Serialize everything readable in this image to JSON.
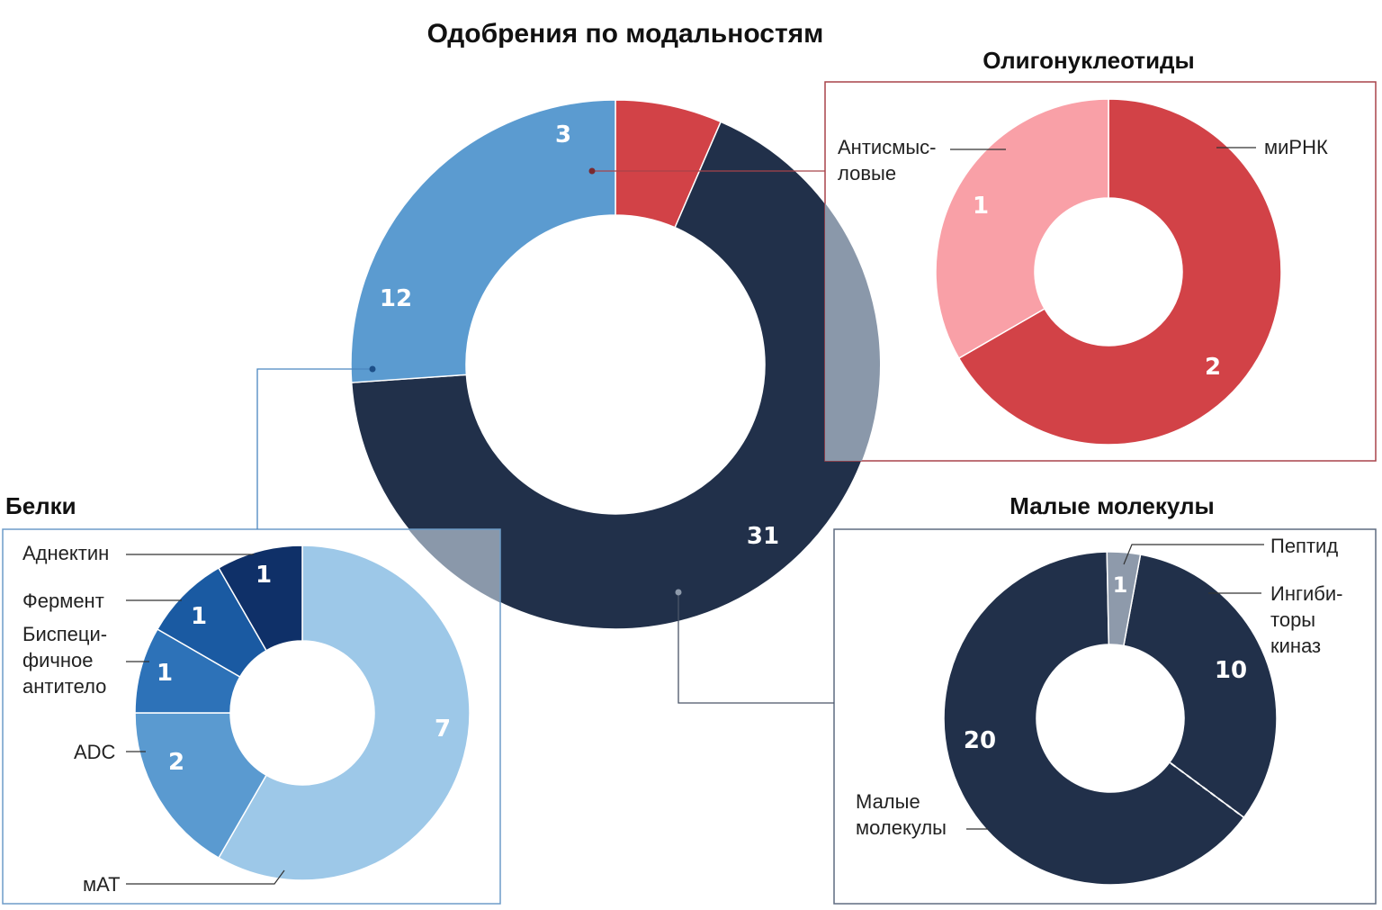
{
  "title": "Одобрения по модальностям",
  "colors": {
    "small_molecules": "#21304a",
    "proteins": "#5b9bd0",
    "oligonucleotides": "#d24247",
    "antisense": "#f9a0a7",
    "peptide": "#8e9aab",
    "protein_mab": "#9dc8e8",
    "protein_adc": "#5a9ad0",
    "protein_bispecific": "#2d72b8",
    "protein_enzyme": "#1a5aa2",
    "protein_adnectin": "#0f3068",
    "overlay": "#8a98aa"
  },
  "chart_data": [
    {
      "type": "pie",
      "variant": "donut",
      "id": "main",
      "title": "Одобрения по модальностям",
      "slices": [
        {
          "key": "oligo",
          "value": 3,
          "label": "3",
          "color": "#d24247"
        },
        {
          "key": "small",
          "value": 31,
          "label": "31",
          "color": "#21304a"
        },
        {
          "key": "proteins",
          "value": 12,
          "label": "12",
          "color": "#5b9bd0"
        }
      ]
    },
    {
      "type": "pie",
      "variant": "donut",
      "id": "oligo",
      "title": "Олигонуклеотиды",
      "slices": [
        {
          "key": "sirna",
          "value": 2,
          "label": "2",
          "name": "миРНК",
          "color": "#d24247"
        },
        {
          "key": "antisense",
          "value": 1,
          "label": "1",
          "name": "Антисмыс-\nловые",
          "color": "#f9a0a7"
        }
      ]
    },
    {
      "type": "pie",
      "variant": "donut",
      "id": "proteins",
      "title": "Белки",
      "slices": [
        {
          "key": "mab",
          "value": 7,
          "label": "7",
          "name": "мАТ",
          "color": "#9dc8e8"
        },
        {
          "key": "adc",
          "value": 2,
          "label": "2",
          "name": "ADC",
          "color": "#5a9ad0"
        },
        {
          "key": "bispecific",
          "value": 1,
          "label": "1",
          "name": "Биспеци-\nфичное\nантитело",
          "color": "#2d72b8"
        },
        {
          "key": "enzyme",
          "value": 1,
          "label": "1",
          "name": "Фермент",
          "color": "#1a5aa2"
        },
        {
          "key": "adnectin",
          "value": 1,
          "label": "1",
          "name": "Аднектин",
          "color": "#0f3068"
        }
      ]
    },
    {
      "type": "pie",
      "variant": "donut",
      "id": "small",
      "title": "Малые молекулы",
      "slices": [
        {
          "key": "kinase",
          "value": 10,
          "label": "10",
          "name": "Ингиби-\nторы\nкиназ",
          "color": "#21304a"
        },
        {
          "key": "smallmol",
          "value": 20,
          "label": "20",
          "name": "Малые\nмолекулы",
          "color": "#21304a"
        },
        {
          "key": "peptide",
          "value": 1,
          "label": "1",
          "name": "Пептид",
          "color": "#8e9aab"
        }
      ]
    }
  ]
}
